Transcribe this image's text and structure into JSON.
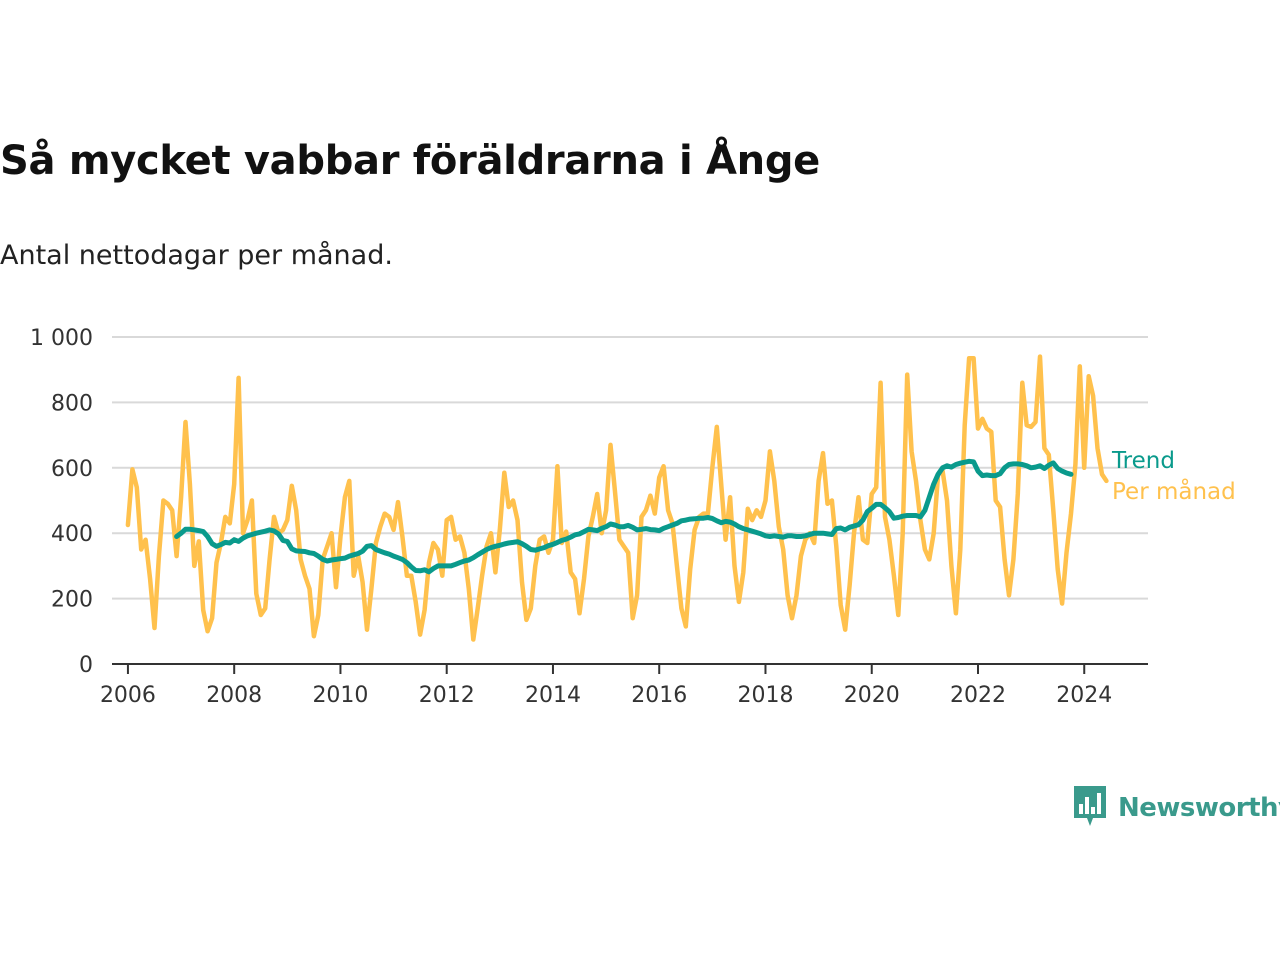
{
  "title": "Så mycket vabbar föräldrarna i Ånge",
  "subtitle": "Antal nettodagar per månad.",
  "brand": {
    "name": "Newsworthy",
    "icon": "bar-chart-logo-icon",
    "color": "#3a9a8c"
  },
  "colors": {
    "monthly": "#ffc14d",
    "trend": "#0a9a8c",
    "grid": "#d9d9d9",
    "axis": "#333333"
  },
  "chart_data": {
    "type": "line",
    "title": "Så mycket vabbar föräldrarna i Ånge",
    "xlabel": "",
    "ylabel": "",
    "ylim": [
      0,
      1000
    ],
    "xlim": [
      2005.7,
      2025.2
    ],
    "grid": true,
    "legend": "direct labels at line ends (right)",
    "x_ticks": [
      2006,
      2008,
      2010,
      2012,
      2014,
      2016,
      2018,
      2020,
      2022,
      2024
    ],
    "x_tick_labels": [
      "2006",
      "2008",
      "2010",
      "2012",
      "2014",
      "2016",
      "2018",
      "2020",
      "2022",
      "2024"
    ],
    "y_ticks": [
      0,
      200,
      400,
      600,
      800,
      1000
    ],
    "y_tick_labels": [
      "0",
      "200",
      "400",
      "600",
      "800",
      "1 000"
    ],
    "series": [
      {
        "name": "Per månad",
        "color": "#ffc14d",
        "start_year": 2006,
        "start_month": 1,
        "values": [
          425,
          595,
          540,
          350,
          380,
          260,
          110,
          330,
          500,
          490,
          470,
          330,
          510,
          740,
          550,
          300,
          375,
          165,
          100,
          140,
          310,
          370,
          450,
          430,
          550,
          875,
          400,
          440,
          500,
          215,
          150,
          170,
          320,
          450,
          400,
          410,
          440,
          545,
          470,
          320,
          270,
          230,
          85,
          150,
          320,
          360,
          400,
          235,
          390,
          510,
          560,
          270,
          330,
          250,
          105,
          230,
          370,
          420,
          460,
          450,
          410,
          495,
          390,
          270,
          270,
          190,
          90,
          165,
          310,
          370,
          350,
          270,
          440,
          450,
          380,
          390,
          340,
          230,
          75,
          170,
          270,
          360,
          400,
          280,
          410,
          585,
          480,
          500,
          440,
          250,
          135,
          170,
          300,
          380,
          390,
          340,
          380,
          605,
          370,
          405,
          280,
          260,
          155,
          260,
          390,
          450,
          520,
          400,
          470,
          670,
          530,
          380,
          360,
          340,
          140,
          210,
          450,
          470,
          515,
          460,
          570,
          605,
          470,
          430,
          300,
          170,
          115,
          290,
          410,
          450,
          460,
          460,
          600,
          725,
          550,
          380,
          510,
          300,
          190,
          280,
          475,
          440,
          470,
          450,
          500,
          650,
          560,
          420,
          350,
          210,
          140,
          210,
          330,
          380,
          400,
          370,
          560,
          645,
          490,
          500,
          360,
          180,
          105,
          240,
          400,
          510,
          380,
          370,
          520,
          540,
          860,
          450,
          380,
          270,
          150,
          400,
          885,
          650,
          560,
          440,
          350,
          320,
          400,
          580,
          590,
          500,
          300,
          155,
          350,
          730,
          935,
          935,
          720,
          750,
          720,
          710,
          500,
          480,
          320,
          210,
          320,
          520,
          860,
          730,
          725,
          740,
          940,
          660,
          640,
          470,
          290,
          185,
          340,
          460,
          610,
          910,
          600,
          880,
          820,
          660,
          580,
          560
        ]
      },
      {
        "name": "Trend",
        "color": "#0a9a8c",
        "start_year": 2006,
        "start_month": 12,
        "values": [
          390,
          400,
          412,
          412,
          410,
          408,
          405,
          390,
          368,
          360,
          365,
          372,
          370,
          380,
          375,
          385,
          392,
          396,
          400,
          403,
          406,
          410,
          407,
          398,
          378,
          375,
          352,
          346,
          345,
          344,
          340,
          338,
          330,
          320,
          315,
          318,
          320,
          322,
          324,
          330,
          334,
          338,
          345,
          360,
          362,
          350,
          345,
          340,
          336,
          330,
          325,
          320,
          310,
          297,
          286,
          285,
          288,
          282,
          292,
          300,
          300,
          300,
          300,
          305,
          310,
          315,
          318,
          325,
          334,
          342,
          350,
          356,
          360,
          363,
          367,
          370,
          372,
          374,
          368,
          360,
          350,
          348,
          352,
          356,
          362,
          366,
          372,
          378,
          382,
          388,
          395,
          398,
          405,
          412,
          410,
          408,
          415,
          420,
          428,
          425,
          420,
          420,
          424,
          418,
          410,
          412,
          414,
          411,
          410,
          408,
          415,
          420,
          425,
          430,
          438,
          440,
          443,
          444,
          446,
          446,
          448,
          445,
          438,
          432,
          436,
          434,
          428,
          420,
          414,
          410,
          406,
          402,
          398,
          392,
          390,
          392,
          390,
          388,
          392,
          392,
          390,
          390,
          392,
          396,
          400,
          400,
          400,
          398,
          396,
          414,
          416,
          410,
          418,
          422,
          426,
          440,
          466,
          476,
          488,
          488,
          478,
          466,
          446,
          448,
          452,
          454,
          454,
          454,
          450,
          470,
          510,
          550,
          580,
          600,
          606,
          602,
          610,
          614,
          617,
          620,
          618,
          590,
          576,
          578,
          576,
          576,
          582,
          600,
          610,
          612,
          612,
          610,
          606,
          600,
          602,
          606,
          598,
          608,
          615,
          598,
          590,
          584,
          580
        ]
      }
    ]
  }
}
